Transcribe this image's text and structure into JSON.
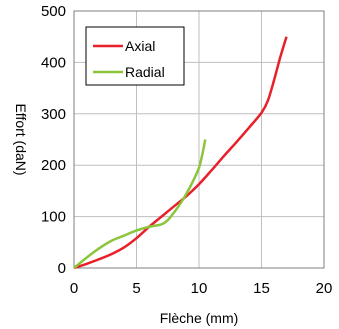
{
  "chart_data": {
    "type": "line",
    "title": "",
    "xlabel": "Flèche (mm)",
    "ylabel": "Effort (daN)",
    "xlim": [
      0,
      20
    ],
    "ylim": [
      0,
      500
    ],
    "xticks": [
      0,
      5,
      10,
      15,
      20
    ],
    "yticks": [
      0,
      100,
      200,
      300,
      400,
      500
    ],
    "grid": true,
    "legend_position": "top-left",
    "series": [
      {
        "name": "Axial",
        "color": "#e8202a",
        "x": [
          0,
          1,
          2,
          3,
          4,
          5,
          6,
          7,
          8,
          9,
          10,
          11,
          12,
          13,
          14,
          15,
          15.5,
          16,
          16.5,
          17
        ],
        "y": [
          0,
          8,
          17,
          27,
          40,
          58,
          80,
          100,
          120,
          140,
          163,
          190,
          218,
          245,
          273,
          302,
          325,
          365,
          410,
          450
        ]
      },
      {
        "name": "Radial",
        "color": "#8cc43c",
        "x": [
          0,
          1,
          2,
          3,
          4,
          5,
          6,
          7,
          7.5,
          8,
          8.5,
          9,
          9.5,
          10,
          10.3,
          10.5
        ],
        "y": [
          0,
          20,
          38,
          53,
          63,
          73,
          80,
          85,
          93,
          108,
          125,
          145,
          168,
          195,
          225,
          250
        ]
      }
    ]
  }
}
